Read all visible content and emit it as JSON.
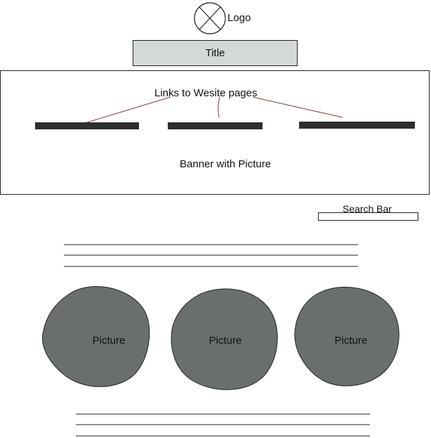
{
  "logo": {
    "label": "Logo",
    "icon": "placeholder-image-icon"
  },
  "title": {
    "label": "Title",
    "background": "#d4d9d8"
  },
  "banner": {
    "links_label": "Links to Wesite pages",
    "banner_label": "Banner with Picture",
    "nav_links_count": 3
  },
  "search": {
    "label": "Search Bar"
  },
  "pictures": [
    {
      "label": "Picture"
    },
    {
      "label": "Picture"
    },
    {
      "label": "Picture"
    }
  ],
  "colors": {
    "picture_fill": "#6a6f6e",
    "nav_bar": "#2e2e2e",
    "annotation_line": "#7a3a3a",
    "outline": "#222222"
  }
}
